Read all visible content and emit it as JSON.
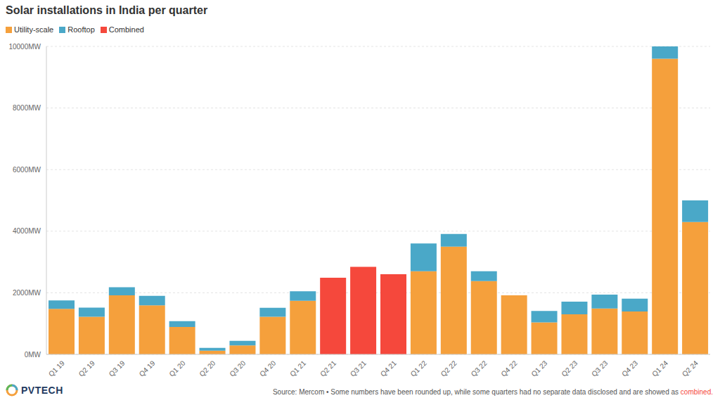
{
  "chart_data": {
    "type": "bar",
    "title": "Solar installations in India per quarter",
    "categories": [
      "Q1 19",
      "Q2 19",
      "Q3 19",
      "Q4 19",
      "Q1 20",
      "Q2 20",
      "Q3 20",
      "Q4 20",
      "Q1 21",
      "Q2 21",
      "Q3 21",
      "Q4 21",
      "Q1 22",
      "Q2 22",
      "Q3 22",
      "Q4 22",
      "Q1 23",
      "Q2 23",
      "Q3 23",
      "Q4 23",
      "Q1 24",
      "Q2 24"
    ],
    "series": [
      {
        "name": "Utility-scale",
        "color": "#f5a03c",
        "values": [
          1480,
          1220,
          1920,
          1590,
          890,
          120,
          290,
          1220,
          1740,
          null,
          null,
          null,
          2700,
          3500,
          2380,
          1920,
          1040,
          1300,
          1490,
          1390,
          9600,
          4300
        ]
      },
      {
        "name": "Rooftop",
        "color": "#4aa8c8",
        "values": [
          270,
          300,
          260,
          310,
          190,
          90,
          150,
          290,
          310,
          null,
          null,
          null,
          900,
          410,
          320,
          null,
          370,
          410,
          450,
          420,
          400,
          700
        ]
      },
      {
        "name": "Combined",
        "color": "#f5483c",
        "values": [
          null,
          null,
          null,
          null,
          null,
          null,
          null,
          null,
          null,
          2490,
          2840,
          2600,
          null,
          null,
          null,
          null,
          null,
          null,
          null,
          null,
          null,
          null
        ]
      }
    ],
    "ylim": [
      0,
      10000
    ],
    "yticks": [
      {
        "value": 0,
        "label": "0MW"
      },
      {
        "value": 2000,
        "label": "2000MW"
      },
      {
        "value": 4000,
        "label": "4000MW"
      },
      {
        "value": 6000,
        "label": "6000MW"
      },
      {
        "value": 8000,
        "label": "8000MW"
      },
      {
        "value": 10000,
        "label": "10000MW"
      }
    ],
    "grid": true,
    "stacked": true,
    "legend": "top-left",
    "source": "Source: Mercom • Some numbers have been rounded up, while some quarters had no separate data disclosed and are showed as combined.",
    "logo": "PVTECH"
  }
}
